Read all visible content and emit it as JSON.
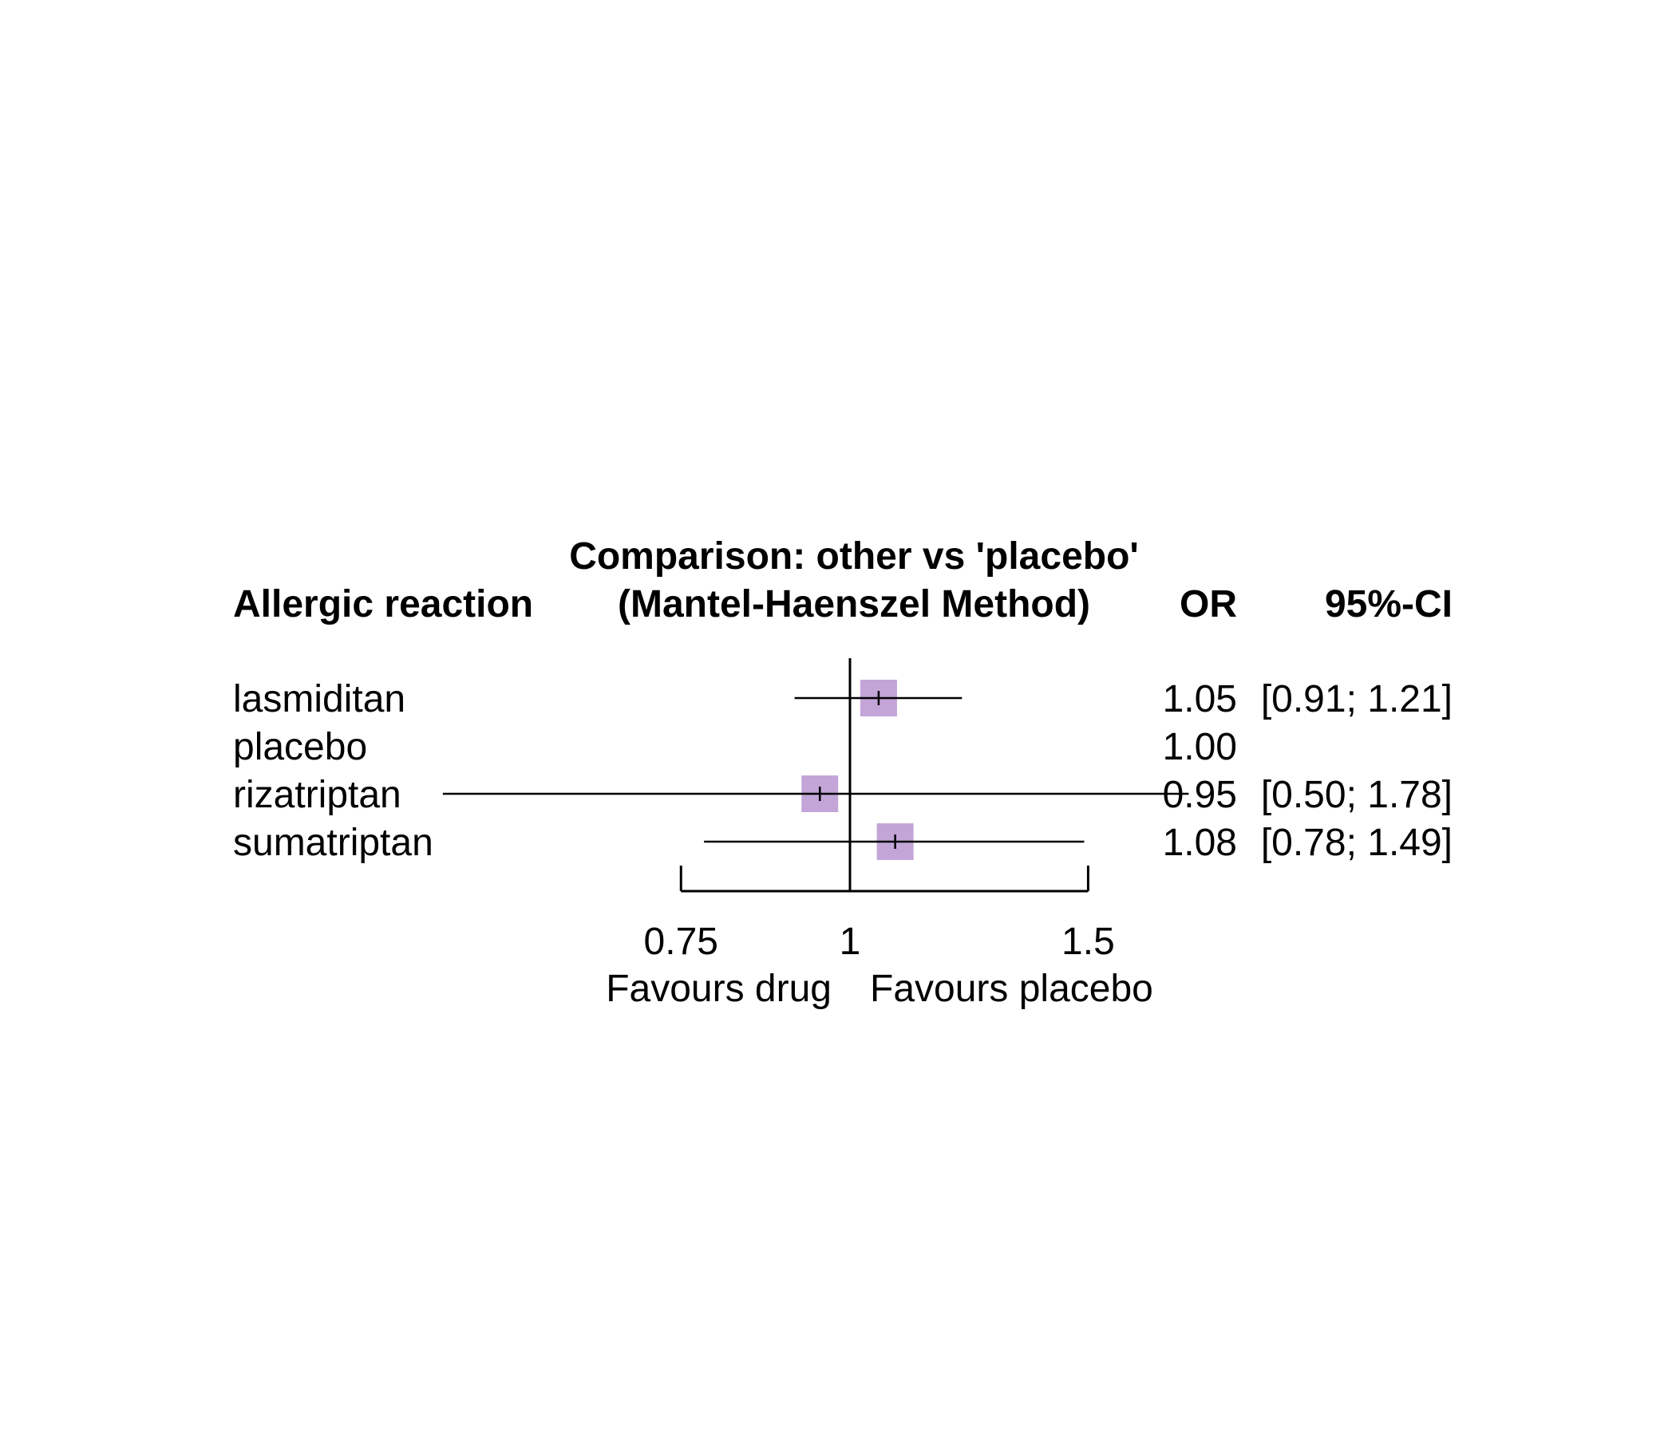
{
  "chart_data": {
    "type": "forest",
    "title_line1": "Comparison: other vs 'placebo'",
    "title_line2": "(Mantel-Haenszel Method)",
    "column_headers": {
      "study": "Allergic reaction",
      "estimate": "OR",
      "ci": "95%-CI"
    },
    "rows": [
      {
        "label": "lasmiditan",
        "or": 1.05,
        "lower": 0.91,
        "upper": 1.21,
        "or_text": "1.05",
        "ci_text": "[0.91; 1.21]",
        "weight": 1.0
      },
      {
        "label": "placebo",
        "or": 1.0,
        "lower": null,
        "upper": null,
        "or_text": "1.00",
        "ci_text": "",
        "weight": 0
      },
      {
        "label": "rizatriptan",
        "or": 0.95,
        "lower": 0.5,
        "upper": 1.78,
        "or_text": "0.95",
        "ci_text": "[0.50; 1.78]",
        "weight": 1.0
      },
      {
        "label": "sumatriptan",
        "or": 1.08,
        "lower": 0.78,
        "upper": 1.49,
        "or_text": "1.08",
        "ci_text": "[0.78; 1.49]",
        "weight": 1.0
      }
    ],
    "x_axis": {
      "scale": "log",
      "ticks": [
        0.75,
        1,
        1.5
      ],
      "tick_labels": [
        "0.75",
        "1",
        "1.5"
      ],
      "null_value": 1
    },
    "favours_left": "Favours drug",
    "favours_right": "Favours placebo",
    "colors": {
      "square": "#c3a5d8",
      "line": "#000000"
    }
  }
}
